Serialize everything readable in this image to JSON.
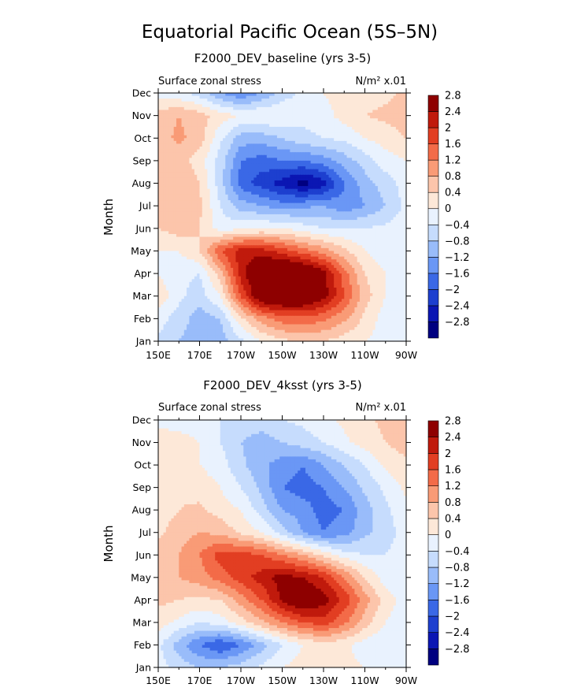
{
  "figure": {
    "title": "Equatorial Pacific Ocean (5S–5N)",
    "palette": [
      "#000080",
      "#0b16b3",
      "#1d3fcf",
      "#3a68e6",
      "#6a97f5",
      "#99bcfa",
      "#c6dcfd",
      "#e9f2fe",
      "#fde8d8",
      "#fcc5ab",
      "#f99b76",
      "#f36b48",
      "#e23e22",
      "#c01a0c",
      "#8e0000"
    ]
  },
  "chart_data": [
    {
      "type": "heatmap",
      "title": "F2000_DEV_baseline (yrs 3-5)",
      "left_label": "Surface zonal stress",
      "right_label": "N/m² x.01",
      "ylabel": "Month",
      "x": [
        150,
        160,
        170,
        180,
        190,
        200,
        210,
        220,
        230,
        240,
        250,
        260,
        270
      ],
      "x_tick_values": [
        150,
        170,
        190,
        210,
        230,
        250,
        270
      ],
      "x_tick_labels": [
        "150E",
        "170E",
        "170W",
        "150W",
        "130W",
        "110W",
        "90W"
      ],
      "xlim": [
        150,
        270
      ],
      "y": [
        "Jan",
        "Feb",
        "Mar",
        "Apr",
        "May",
        "Jun",
        "Jul",
        "Aug",
        "Sep",
        "Oct",
        "Nov",
        "Dec"
      ],
      "levels": [
        -2.8,
        -2.4,
        -2,
        -1.6,
        -1.2,
        -0.8,
        -0.4,
        0,
        0.4,
        0.8,
        1.2,
        1.6,
        2,
        2.4,
        2.8
      ],
      "z": [
        [
          -0.5,
          -0.8,
          -1.0,
          -1.0,
          -0.5,
          0.0,
          0.3,
          0.4,
          0.4,
          0.2,
          0.0,
          -0.2,
          -0.2
        ],
        [
          -0.2,
          -0.6,
          -1.0,
          -0.8,
          0.3,
          1.0,
          1.4,
          1.5,
          1.3,
          0.9,
          0.3,
          -0.2,
          -0.3
        ],
        [
          0.3,
          -0.3,
          -0.6,
          0.0,
          1.6,
          3.0,
          3.2,
          3.1,
          2.6,
          1.6,
          0.6,
          0.0,
          -0.2
        ],
        [
          0.0,
          -0.3,
          -0.4,
          0.6,
          2.2,
          3.2,
          3.4,
          3.2,
          2.6,
          1.4,
          0.4,
          0.0,
          -0.3
        ],
        [
          0.0,
          0.0,
          0.4,
          1.6,
          2.2,
          2.2,
          1.8,
          1.4,
          1.0,
          0.5,
          0.0,
          -0.3,
          -0.3
        ],
        [
          0.4,
          0.6,
          0.4,
          -0.2,
          -0.1,
          0.0,
          0.0,
          -0.2,
          -0.4,
          -0.4,
          -0.4,
          -0.3,
          -0.2
        ],
        [
          0.5,
          0.6,
          0.5,
          -0.4,
          -1.0,
          -1.2,
          -1.4,
          -1.3,
          -1.2,
          -1.5,
          -1.2,
          -0.8,
          -0.3
        ],
        [
          0.4,
          0.8,
          0.4,
          -0.6,
          -1.8,
          -2.2,
          -2.6,
          -3.0,
          -2.6,
          -1.6,
          -1.0,
          -0.6,
          -0.2
        ],
        [
          0.4,
          0.6,
          0.2,
          -0.6,
          -1.6,
          -1.8,
          -1.6,
          -1.6,
          -1.4,
          -1.0,
          -0.6,
          -0.2,
          0.0
        ],
        [
          0.6,
          0.9,
          0.6,
          -0.3,
          -1.0,
          -1.0,
          -0.8,
          -0.5,
          -0.4,
          -0.3,
          0.0,
          0.2,
          0.4
        ],
        [
          0.6,
          0.8,
          0.6,
          0.2,
          0.0,
          0.0,
          0.0,
          -0.3,
          -0.2,
          0.2,
          0.4,
          0.5,
          0.6
        ],
        [
          -0.2,
          -0.3,
          -0.6,
          -1.2,
          -1.6,
          -1.2,
          -0.6,
          -0.3,
          0.0,
          0.2,
          0.2,
          0.3,
          0.5
        ]
      ]
    },
    {
      "type": "heatmap",
      "title": "F2000_DEV_4ksst (yrs 3-5)",
      "left_label": "Surface zonal stress",
      "right_label": "N/m² x.01",
      "ylabel": "Month",
      "x": [
        150,
        160,
        170,
        180,
        190,
        200,
        210,
        220,
        230,
        240,
        250,
        260,
        270
      ],
      "x_tick_values": [
        150,
        170,
        190,
        210,
        230,
        250,
        270
      ],
      "x_tick_labels": [
        "150E",
        "170E",
        "170W",
        "150W",
        "130W",
        "110W",
        "90W"
      ],
      "xlim": [
        150,
        270
      ],
      "y": [
        "Jan",
        "Feb",
        "Mar",
        "Apr",
        "May",
        "Jun",
        "Jul",
        "Aug",
        "Sep",
        "Oct",
        "Nov",
        "Dec"
      ],
      "levels": [
        -2.8,
        -2.4,
        -2,
        -1.6,
        -1.2,
        -0.8,
        -0.4,
        0,
        0.4,
        0.8,
        1.2,
        1.6,
        2,
        2.4,
        2.8
      ],
      "z": [
        [
          -0.2,
          -0.6,
          -0.8,
          -0.8,
          -0.6,
          -0.3,
          0.0,
          0.2,
          0.2,
          0.1,
          0.0,
          -0.1,
          -0.2
        ],
        [
          -0.3,
          -1.0,
          -1.6,
          -2.0,
          -1.6,
          -1.0,
          -0.4,
          0.0,
          0.2,
          0.1,
          -0.2,
          -0.4,
          -0.4
        ],
        [
          0.2,
          -0.1,
          -0.4,
          -0.2,
          0.2,
          0.7,
          1.2,
          1.6,
          1.8,
          1.3,
          0.6,
          0.0,
          -0.2
        ],
        [
          0.5,
          0.4,
          0.3,
          0.4,
          1.0,
          1.6,
          2.5,
          3.0,
          2.6,
          1.9,
          1.0,
          0.2,
          -0.2
        ],
        [
          0.6,
          0.8,
          1.0,
          1.4,
          1.8,
          2.2,
          2.6,
          2.4,
          2.0,
          1.2,
          0.4,
          -0.2,
          -0.3
        ],
        [
          0.6,
          0.8,
          1.2,
          1.8,
          1.8,
          1.6,
          1.2,
          0.8,
          0.3,
          -0.2,
          -0.4,
          -0.4,
          -0.2
        ],
        [
          0.3,
          0.6,
          0.8,
          0.7,
          0.3,
          0.0,
          -0.6,
          -1.2,
          -1.6,
          -1.4,
          -0.9,
          -0.6,
          -0.2
        ],
        [
          0.2,
          0.4,
          0.5,
          0.2,
          0.0,
          -0.6,
          -1.2,
          -1.4,
          -1.8,
          -1.6,
          -1.0,
          -0.5,
          -0.1
        ],
        [
          0.1,
          0.3,
          0.2,
          0.0,
          -0.4,
          -0.9,
          -1.6,
          -1.8,
          -1.6,
          -1.2,
          -0.7,
          -0.3,
          0.1
        ],
        [
          0.1,
          0.2,
          0.0,
          -0.2,
          -0.7,
          -1.1,
          -1.4,
          -1.6,
          -1.2,
          -0.8,
          -0.4,
          0.1,
          0.3
        ],
        [
          0.2,
          0.2,
          0.0,
          -0.4,
          -0.8,
          -1.0,
          -0.8,
          -0.6,
          -0.4,
          -0.1,
          0.2,
          0.4,
          0.6
        ],
        [
          -0.1,
          -0.2,
          -0.3,
          -0.4,
          -0.5,
          -0.6,
          -0.4,
          -0.3,
          -0.1,
          0.1,
          0.3,
          0.5,
          0.6
        ]
      ]
    }
  ]
}
